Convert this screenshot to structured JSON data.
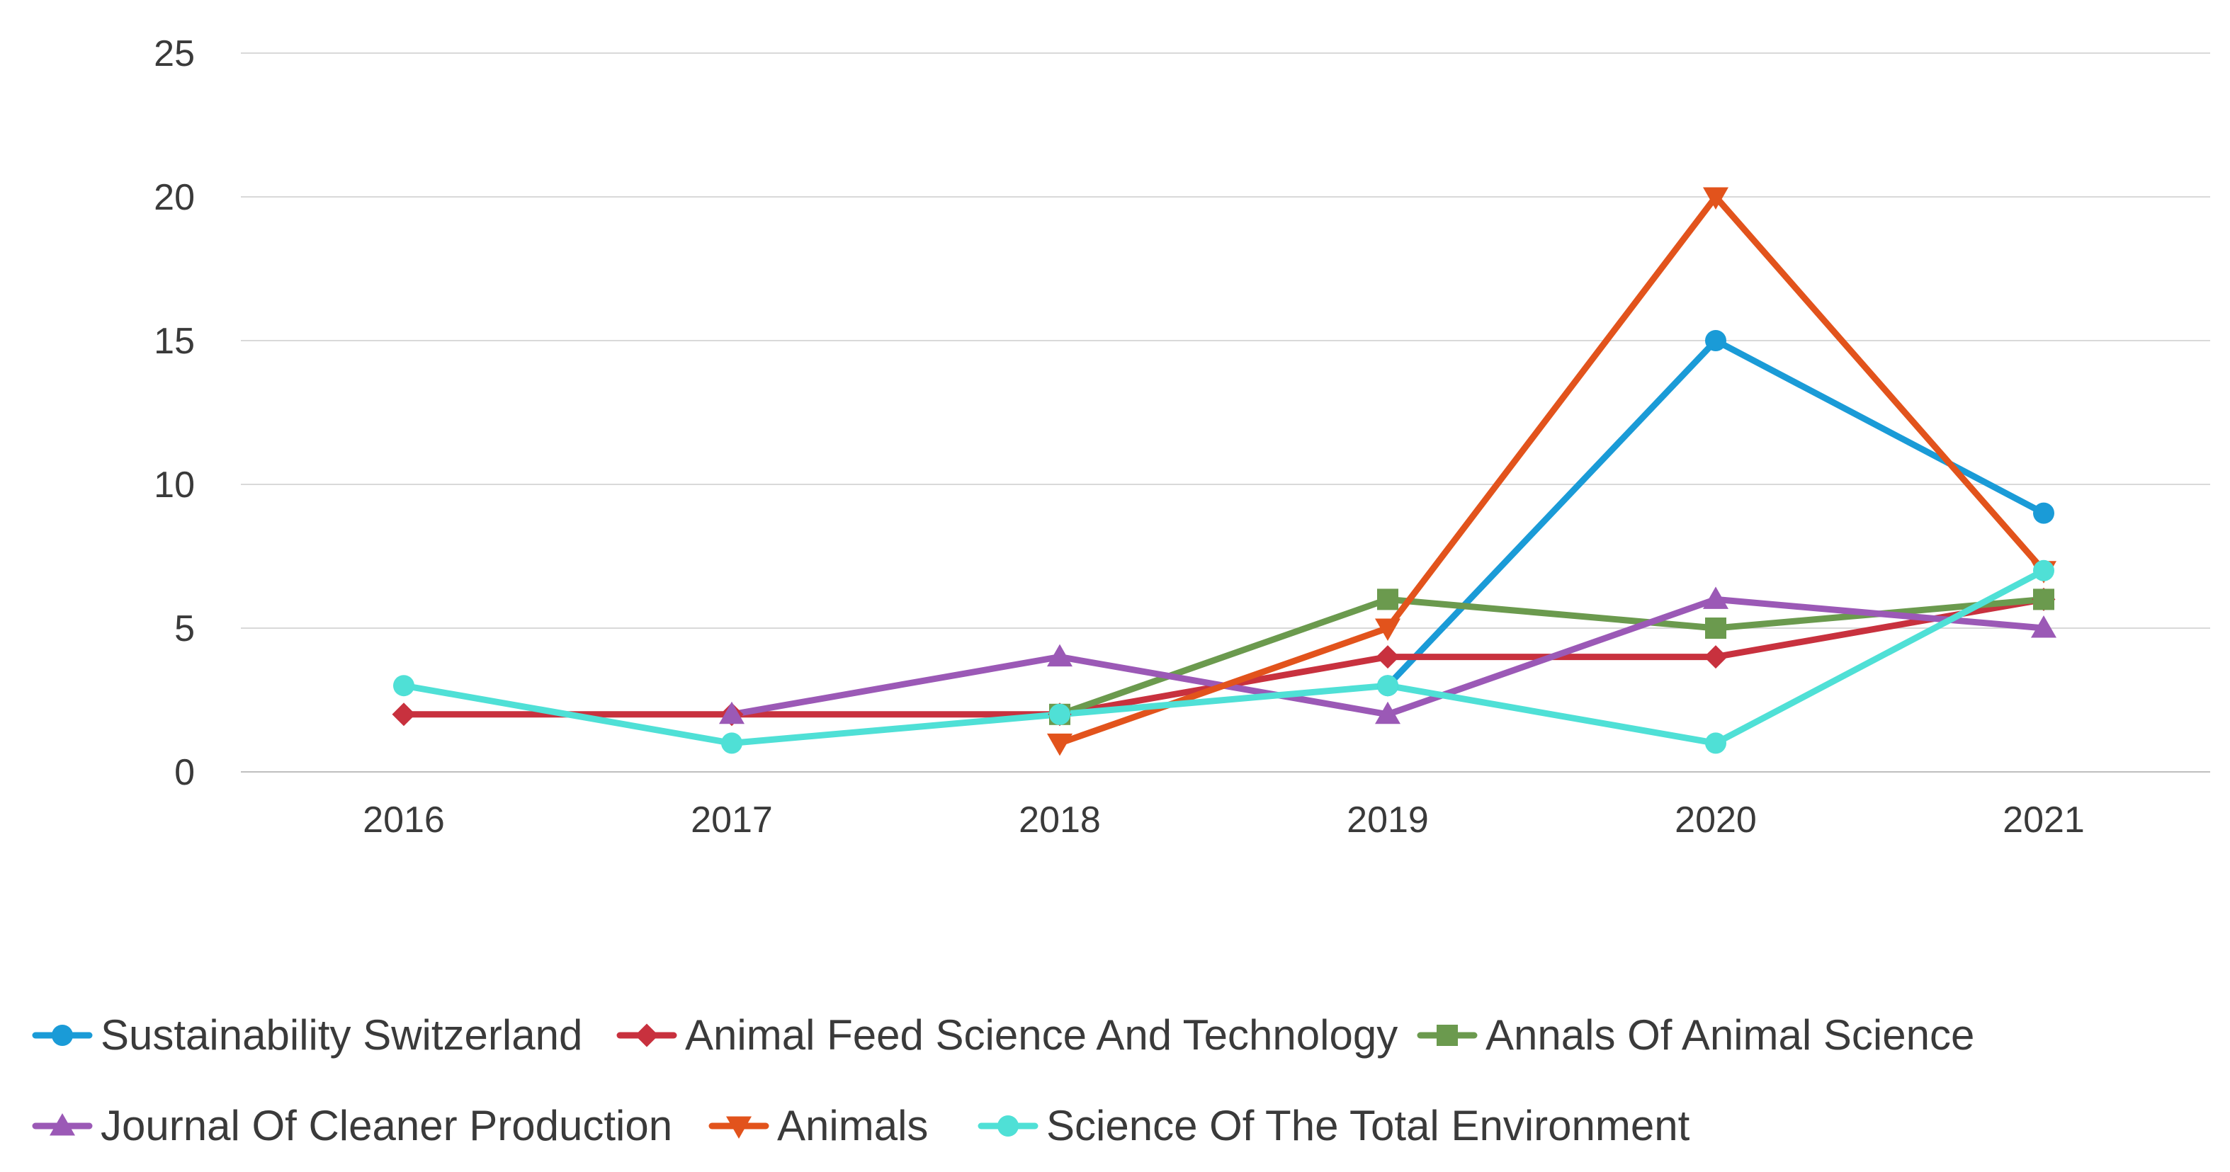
{
  "chart_data": {
    "type": "line",
    "title": "",
    "xlabel": "",
    "ylabel": "",
    "categories": [
      "2016",
      "2017",
      "2018",
      "2019",
      "2020",
      "2021"
    ],
    "yticks": [
      "0",
      "5",
      "10",
      "15",
      "20",
      "25"
    ],
    "ylim": [
      0,
      25
    ],
    "grid": true,
    "legend_position": "bottom",
    "series": [
      {
        "name": "Sustainability Switzerland",
        "color": "#1a9bd7",
        "marker": "circle",
        "values": [
          null,
          null,
          null,
          3,
          15,
          9
        ]
      },
      {
        "name": "Animal Feed Science And Technology",
        "color": "#c8313e",
        "marker": "diamond",
        "values": [
          2,
          2,
          2,
          4,
          4,
          6
        ]
      },
      {
        "name": "Annals Of Animal Science",
        "color": "#6b9a4e",
        "marker": "square",
        "values": [
          null,
          null,
          2,
          6,
          5,
          6
        ]
      },
      {
        "name": "Journal Of Cleaner Production",
        "color": "#9b59b6",
        "marker": "triangle-up",
        "values": [
          null,
          2,
          4,
          2,
          6,
          5
        ]
      },
      {
        "name": "Animals",
        "color": "#e2531c",
        "marker": "triangle-down",
        "values": [
          null,
          null,
          1,
          5,
          20,
          7
        ]
      },
      {
        "name": "Science Of The Total Environment",
        "color": "#4fe0d6",
        "marker": "circle",
        "values": [
          3,
          1,
          2,
          3,
          1,
          7
        ]
      }
    ]
  }
}
